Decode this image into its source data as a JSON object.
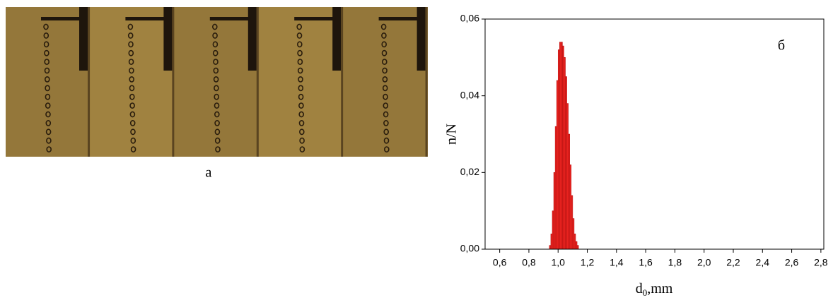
{
  "photo_label": "а",
  "chart_data": {
    "type": "histogram",
    "panel_label": "б",
    "y_label": "n/N",
    "x_label": [
      "d",
      "0",
      ",mm"
    ],
    "color": "#e8231f",
    "bins": [
      0.94,
      0.95,
      0.96,
      0.97,
      0.98,
      0.99,
      1.0,
      1.01,
      1.02,
      1.03,
      1.04,
      1.05,
      1.06,
      1.07,
      1.08,
      1.09,
      1.1,
      1.11,
      1.12,
      1.13,
      1.14
    ],
    "values": [
      0.001,
      0.004,
      0.01,
      0.02,
      0.032,
      0.044,
      0.052,
      0.054,
      0.054,
      0.053,
      0.05,
      0.045,
      0.038,
      0.03,
      0.022,
      0.014,
      0.008,
      0.004,
      0.002,
      0.001
    ],
    "xlim": [
      0.5,
      2.82
    ],
    "ylim": [
      0,
      0.06
    ],
    "xticks": [
      {
        "value": 0.6,
        "label": "0,6"
      },
      {
        "value": 0.8,
        "label": "0,8"
      },
      {
        "value": 1.0,
        "label": "1,0"
      },
      {
        "value": 1.2,
        "label": "1,2"
      },
      {
        "value": 1.4,
        "label": "1,4"
      },
      {
        "value": 1.6,
        "label": "1,6"
      },
      {
        "value": 1.8,
        "label": "1,8"
      },
      {
        "value": 2.0,
        "label": "2,0"
      },
      {
        "value": 2.2,
        "label": "2,2"
      },
      {
        "value": 2.4,
        "label": "2,4"
      },
      {
        "value": 2.6,
        "label": "2,6"
      },
      {
        "value": 2.8,
        "label": "2,8"
      }
    ],
    "yticks": [
      {
        "value": 0,
        "label": "0,00"
      },
      {
        "value": 0.02,
        "label": "0,02"
      },
      {
        "value": 0.04,
        "label": "0,04"
      },
      {
        "value": 0.06,
        "label": "0,06"
      }
    ]
  }
}
